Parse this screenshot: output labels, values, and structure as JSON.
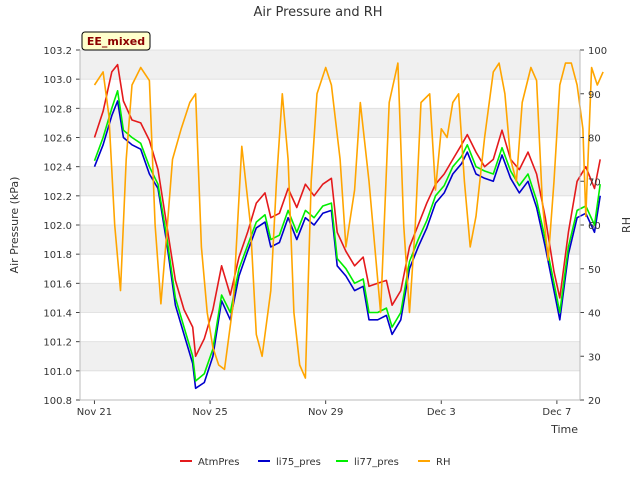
{
  "chart_data": {
    "type": "line",
    "title": "Air Pressure and RH",
    "badge": "EE_mixed",
    "xlabel": "Time",
    "ylabel_left": "Air Pressure (kPa)",
    "ylabel_right": "RH",
    "x_range_days": [
      -0.5,
      16.8
    ],
    "x_ticks": [
      {
        "day": 0,
        "label": "Nov 21"
      },
      {
        "day": 4,
        "label": "Nov 25"
      },
      {
        "day": 8,
        "label": "Nov 29"
      },
      {
        "day": 12,
        "label": "Dec 3"
      },
      {
        "day": 16,
        "label": "Dec 7"
      }
    ],
    "ylim_left": [
      100.8,
      103.2
    ],
    "y_ticks_left": [
      "100.8",
      "101.0",
      "101.2",
      "101.4",
      "101.6",
      "101.8",
      "102.0",
      "102.2",
      "102.4",
      "102.6",
      "102.8",
      "103.0",
      "103.2"
    ],
    "ylim_right": [
      20,
      100
    ],
    "y_ticks_right": [
      "20",
      "30",
      "40",
      "50",
      "60",
      "70",
      "80",
      "90",
      "100"
    ],
    "grid": true,
    "legend_position": "bottom",
    "series": [
      {
        "name": "AtmPres",
        "axis": "left",
        "color": "#e41a1c",
        "points": [
          [
            0,
            102.6
          ],
          [
            0.3,
            102.78
          ],
          [
            0.6,
            103.05
          ],
          [
            0.8,
            103.1
          ],
          [
            1.0,
            102.85
          ],
          [
            1.3,
            102.72
          ],
          [
            1.6,
            102.7
          ],
          [
            1.9,
            102.58
          ],
          [
            2.2,
            102.38
          ],
          [
            2.5,
            102.0
          ],
          [
            2.8,
            101.62
          ],
          [
            3.1,
            101.42
          ],
          [
            3.4,
            101.3
          ],
          [
            3.5,
            101.1
          ],
          [
            3.8,
            101.22
          ],
          [
            4.1,
            101.42
          ],
          [
            4.4,
            101.72
          ],
          [
            4.7,
            101.52
          ],
          [
            5.0,
            101.78
          ],
          [
            5.3,
            101.95
          ],
          [
            5.6,
            102.15
          ],
          [
            5.9,
            102.22
          ],
          [
            6.1,
            102.05
          ],
          [
            6.4,
            102.08
          ],
          [
            6.7,
            102.25
          ],
          [
            7.0,
            102.12
          ],
          [
            7.3,
            102.28
          ],
          [
            7.6,
            102.2
          ],
          [
            7.9,
            102.28
          ],
          [
            8.2,
            102.32
          ],
          [
            8.4,
            101.95
          ],
          [
            8.7,
            101.82
          ],
          [
            9.0,
            101.72
          ],
          [
            9.3,
            101.78
          ],
          [
            9.5,
            101.58
          ],
          [
            9.8,
            101.6
          ],
          [
            10.1,
            101.62
          ],
          [
            10.3,
            101.45
          ],
          [
            10.6,
            101.55
          ],
          [
            10.9,
            101.85
          ],
          [
            11.2,
            102.0
          ],
          [
            11.5,
            102.15
          ],
          [
            11.8,
            102.28
          ],
          [
            12.1,
            102.35
          ],
          [
            12.4,
            102.45
          ],
          [
            12.7,
            102.55
          ],
          [
            12.9,
            102.62
          ],
          [
            13.2,
            102.5
          ],
          [
            13.5,
            102.4
          ],
          [
            13.8,
            102.45
          ],
          [
            14.1,
            102.65
          ],
          [
            14.4,
            102.45
          ],
          [
            14.7,
            102.38
          ],
          [
            15.0,
            102.5
          ],
          [
            15.3,
            102.35
          ],
          [
            15.6,
            102.05
          ],
          [
            15.9,
            101.68
          ],
          [
            16.1,
            101.5
          ],
          [
            16.4,
            101.95
          ],
          [
            16.7,
            102.3
          ],
          [
            17.0,
            102.4
          ],
          [
            17.3,
            102.25
          ],
          [
            17.5,
            102.45
          ]
        ]
      },
      {
        "name": "li75_pres",
        "axis": "left",
        "color": "#0000cc",
        "points": [
          [
            0,
            102.4
          ],
          [
            0.3,
            102.55
          ],
          [
            0.6,
            102.75
          ],
          [
            0.8,
            102.85
          ],
          [
            1.0,
            102.6
          ],
          [
            1.3,
            102.55
          ],
          [
            1.6,
            102.52
          ],
          [
            1.9,
            102.35
          ],
          [
            2.2,
            102.25
          ],
          [
            2.5,
            101.88
          ],
          [
            2.8,
            101.45
          ],
          [
            3.1,
            101.25
          ],
          [
            3.4,
            101.05
          ],
          [
            3.5,
            100.88
          ],
          [
            3.8,
            100.92
          ],
          [
            4.1,
            101.1
          ],
          [
            4.4,
            101.48
          ],
          [
            4.7,
            101.35
          ],
          [
            5.0,
            101.65
          ],
          [
            5.3,
            101.82
          ],
          [
            5.6,
            101.98
          ],
          [
            5.9,
            102.02
          ],
          [
            6.1,
            101.85
          ],
          [
            6.4,
            101.88
          ],
          [
            6.7,
            102.05
          ],
          [
            7.0,
            101.9
          ],
          [
            7.3,
            102.05
          ],
          [
            7.6,
            102.0
          ],
          [
            7.9,
            102.08
          ],
          [
            8.2,
            102.1
          ],
          [
            8.4,
            101.72
          ],
          [
            8.7,
            101.65
          ],
          [
            9.0,
            101.55
          ],
          [
            9.3,
            101.58
          ],
          [
            9.5,
            101.35
          ],
          [
            9.8,
            101.35
          ],
          [
            10.1,
            101.38
          ],
          [
            10.3,
            101.25
          ],
          [
            10.6,
            101.35
          ],
          [
            10.9,
            101.7
          ],
          [
            11.2,
            101.85
          ],
          [
            11.5,
            101.98
          ],
          [
            11.8,
            102.15
          ],
          [
            12.1,
            102.22
          ],
          [
            12.4,
            102.35
          ],
          [
            12.7,
            102.42
          ],
          [
            12.9,
            102.5
          ],
          [
            13.2,
            102.35
          ],
          [
            13.5,
            102.32
          ],
          [
            13.8,
            102.3
          ],
          [
            14.1,
            102.48
          ],
          [
            14.4,
            102.32
          ],
          [
            14.7,
            102.22
          ],
          [
            15.0,
            102.3
          ],
          [
            15.3,
            102.12
          ],
          [
            15.6,
            101.85
          ],
          [
            15.9,
            101.55
          ],
          [
            16.1,
            101.35
          ],
          [
            16.4,
            101.8
          ],
          [
            16.7,
            102.05
          ],
          [
            17.0,
            102.08
          ],
          [
            17.3,
            101.95
          ],
          [
            17.5,
            102.2
          ]
        ]
      },
      {
        "name": "li77_pres",
        "axis": "left",
        "color": "#00ee00",
        "points": [
          [
            0,
            102.44
          ],
          [
            0.3,
            102.6
          ],
          [
            0.6,
            102.8
          ],
          [
            0.8,
            102.92
          ],
          [
            1.0,
            102.65
          ],
          [
            1.3,
            102.6
          ],
          [
            1.6,
            102.56
          ],
          [
            1.9,
            102.4
          ],
          [
            2.2,
            102.28
          ],
          [
            2.5,
            101.92
          ],
          [
            2.8,
            101.5
          ],
          [
            3.1,
            101.3
          ],
          [
            3.4,
            101.1
          ],
          [
            3.5,
            100.93
          ],
          [
            3.8,
            100.98
          ],
          [
            4.1,
            101.15
          ],
          [
            4.4,
            101.52
          ],
          [
            4.7,
            101.4
          ],
          [
            5.0,
            101.7
          ],
          [
            5.3,
            101.86
          ],
          [
            5.6,
            102.02
          ],
          [
            5.9,
            102.07
          ],
          [
            6.1,
            101.9
          ],
          [
            6.4,
            101.93
          ],
          [
            6.7,
            102.1
          ],
          [
            7.0,
            101.95
          ],
          [
            7.3,
            102.1
          ],
          [
            7.6,
            102.05
          ],
          [
            7.9,
            102.13
          ],
          [
            8.2,
            102.15
          ],
          [
            8.4,
            101.77
          ],
          [
            8.7,
            101.7
          ],
          [
            9.0,
            101.6
          ],
          [
            9.3,
            101.63
          ],
          [
            9.5,
            101.4
          ],
          [
            9.8,
            101.4
          ],
          [
            10.1,
            101.43
          ],
          [
            10.3,
            101.3
          ],
          [
            10.6,
            101.4
          ],
          [
            10.9,
            101.75
          ],
          [
            11.2,
            101.9
          ],
          [
            11.5,
            102.03
          ],
          [
            11.8,
            102.2
          ],
          [
            12.1,
            102.27
          ],
          [
            12.4,
            102.4
          ],
          [
            12.7,
            102.47
          ],
          [
            12.9,
            102.55
          ],
          [
            13.2,
            102.4
          ],
          [
            13.5,
            102.37
          ],
          [
            13.8,
            102.35
          ],
          [
            14.1,
            102.53
          ],
          [
            14.4,
            102.37
          ],
          [
            14.7,
            102.27
          ],
          [
            15.0,
            102.35
          ],
          [
            15.3,
            102.17
          ],
          [
            15.6,
            101.9
          ],
          [
            15.9,
            101.6
          ],
          [
            16.1,
            101.4
          ],
          [
            16.4,
            101.85
          ],
          [
            16.7,
            102.1
          ],
          [
            17.0,
            102.13
          ],
          [
            17.3,
            102.0
          ],
          [
            17.5,
            102.28
          ]
        ]
      },
      {
        "name": "RH",
        "axis": "right",
        "color": "#ffa500",
        "points": [
          [
            0,
            92
          ],
          [
            0.3,
            95
          ],
          [
            0.5,
            85
          ],
          [
            0.7,
            60
          ],
          [
            0.9,
            45
          ],
          [
            1.1,
            75
          ],
          [
            1.3,
            92
          ],
          [
            1.6,
            96
          ],
          [
            1.9,
            93
          ],
          [
            2.1,
            60
          ],
          [
            2.3,
            42
          ],
          [
            2.5,
            58
          ],
          [
            2.7,
            75
          ],
          [
            3.0,
            82
          ],
          [
            3.3,
            88
          ],
          [
            3.5,
            90
          ],
          [
            3.7,
            55
          ],
          [
            3.9,
            40
          ],
          [
            4.1,
            32
          ],
          [
            4.3,
            28
          ],
          [
            4.5,
            27
          ],
          [
            4.8,
            42
          ],
          [
            5.1,
            78
          ],
          [
            5.4,
            60
          ],
          [
            5.6,
            35
          ],
          [
            5.8,
            30
          ],
          [
            6.1,
            45
          ],
          [
            6.3,
            70
          ],
          [
            6.5,
            90
          ],
          [
            6.7,
            75
          ],
          [
            6.9,
            40
          ],
          [
            7.1,
            28
          ],
          [
            7.3,
            25
          ],
          [
            7.5,
            70
          ],
          [
            7.7,
            90
          ],
          [
            8.0,
            96
          ],
          [
            8.2,
            92
          ],
          [
            8.5,
            75
          ],
          [
            8.7,
            55
          ],
          [
            9.0,
            68
          ],
          [
            9.2,
            88
          ],
          [
            9.5,
            70
          ],
          [
            9.7,
            55
          ],
          [
            9.9,
            40
          ],
          [
            10.2,
            88
          ],
          [
            10.5,
            97
          ],
          [
            10.7,
            60
          ],
          [
            10.9,
            40
          ],
          [
            11.1,
            60
          ],
          [
            11.3,
            88
          ],
          [
            11.6,
            90
          ],
          [
            11.8,
            68
          ],
          [
            12.0,
            82
          ],
          [
            12.2,
            80
          ],
          [
            12.4,
            88
          ],
          [
            12.6,
            90
          ],
          [
            12.8,
            70
          ],
          [
            13.0,
            55
          ],
          [
            13.2,
            62
          ],
          [
            13.5,
            80
          ],
          [
            13.8,
            95
          ],
          [
            14.0,
            97
          ],
          [
            14.2,
            90
          ],
          [
            14.4,
            75
          ],
          [
            14.6,
            70
          ],
          [
            14.8,
            88
          ],
          [
            15.1,
            96
          ],
          [
            15.3,
            93
          ],
          [
            15.5,
            65
          ],
          [
            15.7,
            52
          ],
          [
            15.9,
            70
          ],
          [
            16.1,
            92
          ],
          [
            16.3,
            97
          ],
          [
            16.5,
            97
          ],
          [
            16.7,
            92
          ],
          [
            16.9,
            82
          ],
          [
            17.0,
            62
          ],
          [
            17.2,
            96
          ],
          [
            17.4,
            92
          ],
          [
            17.6,
            95
          ]
        ]
      }
    ]
  }
}
